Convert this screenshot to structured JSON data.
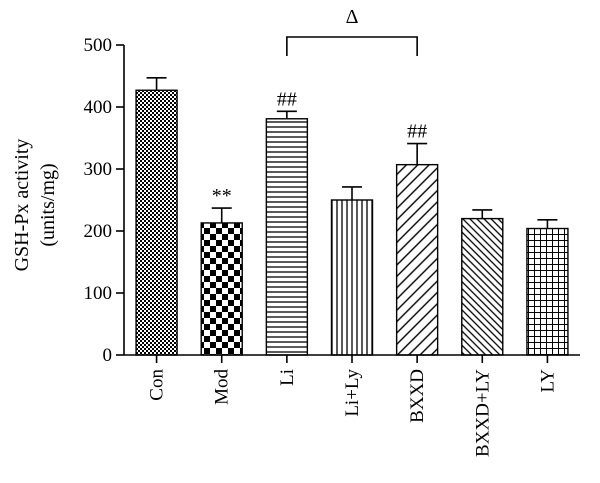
{
  "chart_data": {
    "type": "bar",
    "ylabel_line1": "GSH-Px activity",
    "ylabel_line2": "(units/mg)",
    "ylim": [
      0,
      500
    ],
    "yticks": [
      0,
      100,
      200,
      300,
      400,
      500
    ],
    "categories": [
      "Con",
      "Mod",
      "Li",
      "Li+Ly",
      "BXXD",
      "BXXD+LY",
      "LY"
    ],
    "values": [
      427,
      213,
      381,
      250,
      307,
      220,
      204
    ],
    "errors": [
      20,
      24,
      12,
      21,
      34,
      14,
      14
    ],
    "patterns": [
      "fine-checker",
      "big-checker",
      "horizontal-lines",
      "vertical-lines",
      "diagonal-lines",
      "dense-diagonal",
      "grid"
    ],
    "annotations": [
      "",
      "**",
      "##",
      "",
      "##",
      "",
      ""
    ],
    "bracket": {
      "from": "Li",
      "to": "BXXD",
      "label": "Δ"
    }
  }
}
